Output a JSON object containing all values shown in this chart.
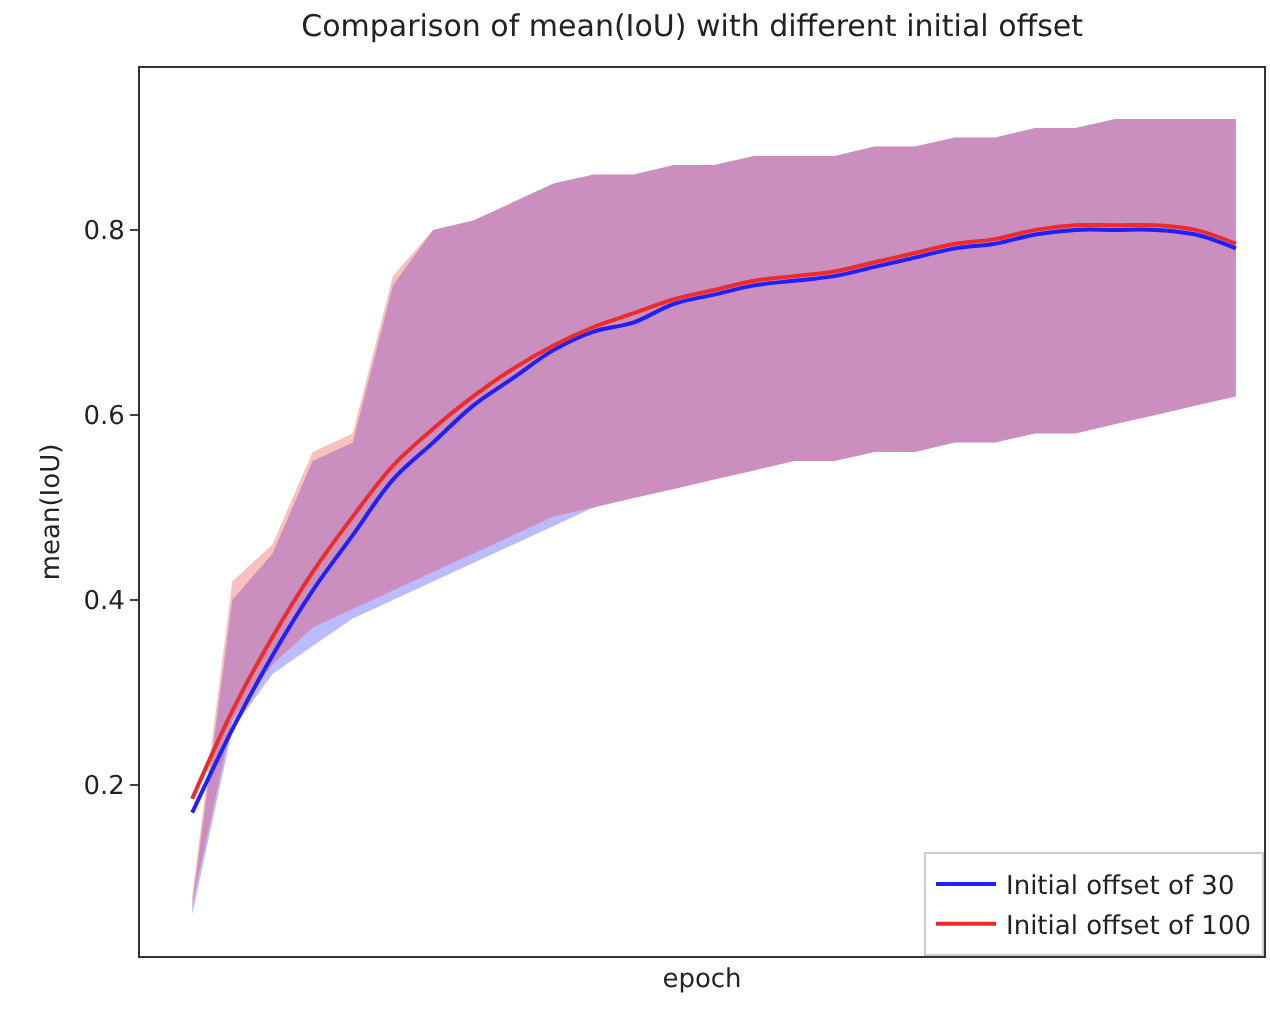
{
  "chart_data": {
    "type": "line",
    "title": "Comparison of mean(IoU) with different initial offset",
    "xlabel": "epoch",
    "ylabel": "mean(IoU)",
    "categories": [
      null,
      null,
      null,
      null,
      null,
      null,
      null,
      null,
      null,
      null,
      null,
      null,
      null,
      null,
      null,
      null,
      null,
      null,
      null,
      null,
      null,
      null,
      null,
      null,
      null,
      null,
      null
    ],
    "series": [
      {
        "name": "Initial offset of 30",
        "color": "#1f1fff",
        "values": [
          0.17,
          0.26,
          0.34,
          0.41,
          0.47,
          0.53,
          0.57,
          0.61,
          0.64,
          0.67,
          0.69,
          0.7,
          0.72,
          0.73,
          0.74,
          0.745,
          0.75,
          0.76,
          0.77,
          0.78,
          0.785,
          0.795,
          0.8,
          0.8,
          0.8,
          0.795,
          0.78
        ],
        "lower": [
          0.06,
          0.26,
          0.32,
          0.35,
          0.38,
          0.4,
          0.42,
          0.44,
          0.46,
          0.48,
          0.5,
          0.51,
          0.52,
          0.53,
          0.54,
          0.55,
          0.55,
          0.56,
          0.56,
          0.57,
          0.57,
          0.58,
          0.58,
          0.59,
          0.6,
          0.61,
          0.62
        ],
        "upper": [
          0.07,
          0.4,
          0.45,
          0.55,
          0.57,
          0.74,
          0.8,
          0.81,
          0.83,
          0.85,
          0.86,
          0.86,
          0.87,
          0.87,
          0.88,
          0.88,
          0.88,
          0.89,
          0.89,
          0.9,
          0.9,
          0.91,
          0.91,
          0.92,
          0.92,
          0.92,
          0.92
        ]
      },
      {
        "name": "Initial offset of 100",
        "color": "#ee2a2a",
        "values": [
          0.185,
          0.28,
          0.36,
          0.43,
          0.49,
          0.545,
          0.585,
          0.62,
          0.65,
          0.675,
          0.695,
          0.71,
          0.725,
          0.735,
          0.745,
          0.75,
          0.755,
          0.765,
          0.775,
          0.785,
          0.79,
          0.8,
          0.805,
          0.805,
          0.805,
          0.8,
          0.785
        ],
        "lower": [
          0.07,
          0.27,
          0.33,
          0.37,
          0.39,
          0.41,
          0.43,
          0.45,
          0.47,
          0.49,
          0.5,
          0.51,
          0.52,
          0.53,
          0.54,
          0.55,
          0.55,
          0.56,
          0.56,
          0.57,
          0.57,
          0.58,
          0.58,
          0.59,
          0.6,
          0.61,
          0.62
        ],
        "upper": [
          0.08,
          0.42,
          0.46,
          0.56,
          0.58,
          0.75,
          0.8,
          0.81,
          0.83,
          0.85,
          0.86,
          0.86,
          0.87,
          0.87,
          0.88,
          0.88,
          0.88,
          0.89,
          0.89,
          0.9,
          0.9,
          0.91,
          0.91,
          0.92,
          0.92,
          0.92,
          0.92
        ]
      }
    ],
    "ylim": [
      0.015,
      0.975
    ],
    "yticks": [
      0.2,
      0.4,
      0.6,
      0.8
    ],
    "grid": false,
    "legend": "bottom right",
    "tick_labels": "y",
    "line_style": "solid",
    "marker": "none"
  }
}
